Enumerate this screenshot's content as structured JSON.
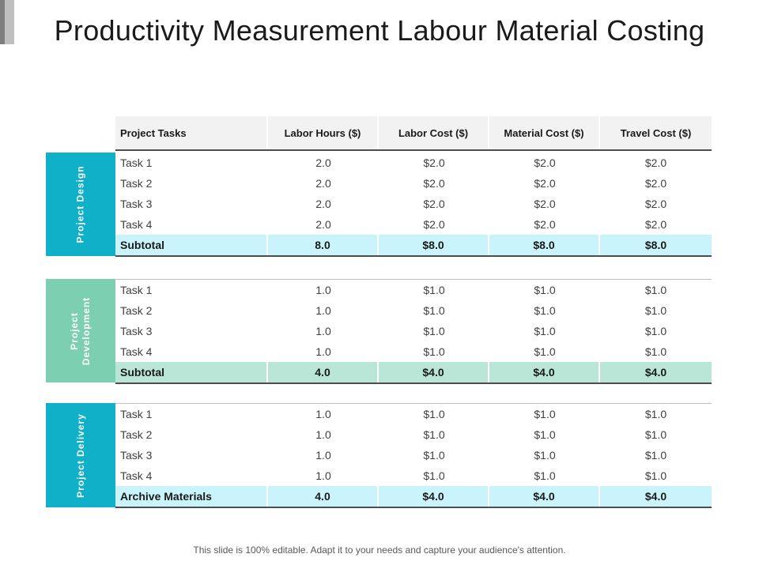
{
  "title": "Productivity Measurement Labour Material Costing",
  "headers": [
    "Project Tasks",
    "Labor Hours ($)",
    "Labor Cost ($)",
    "Material Cost ($)",
    "Travel Cost ($)"
  ],
  "colors": {
    "design": "#0fb0c8",
    "design_subtotal": "#c9f4fb",
    "development": "#7dcfb2",
    "development_subtotal": "#b9e6d6",
    "delivery": "#0fb0c8",
    "delivery_subtotal": "#c9f4fb"
  },
  "sections": [
    {
      "label": "Project Design",
      "rows": [
        [
          "Task 1",
          "2.0",
          "$2.0",
          "$2.0",
          "$2.0"
        ],
        [
          "Task 2",
          "2.0",
          "$2.0",
          "$2.0",
          "$2.0"
        ],
        [
          "Task 3",
          "2.0",
          "$2.0",
          "$2.0",
          "$2.0"
        ],
        [
          "Task 4",
          "2.0",
          "$2.0",
          "$2.0",
          "$2.0"
        ]
      ],
      "subtotal": [
        "Subtotal",
        "8.0",
        "$8.0",
        "$8.0",
        "$8.0"
      ]
    },
    {
      "label": "Project\nDevelopment",
      "rows": [
        [
          "Task 1",
          "1.0",
          "$1.0",
          "$1.0",
          "$1.0"
        ],
        [
          "Task 2",
          "1.0",
          "$1.0",
          "$1.0",
          "$1.0"
        ],
        [
          "Task 3",
          "1.0",
          "$1.0",
          "$1.0",
          "$1.0"
        ],
        [
          "Task 4",
          "1.0",
          "$1.0",
          "$1.0",
          "$1.0"
        ]
      ],
      "subtotal": [
        "Subtotal",
        "4.0",
        "$4.0",
        "$4.0",
        "$4.0"
      ]
    },
    {
      "label": "Project Delivery",
      "rows": [
        [
          "Task 1",
          "1.0",
          "$1.0",
          "$1.0",
          "$1.0"
        ],
        [
          "Task 2",
          "1.0",
          "$1.0",
          "$1.0",
          "$1.0"
        ],
        [
          "Task 3",
          "1.0",
          "$1.0",
          "$1.0",
          "$1.0"
        ],
        [
          "Task 4",
          "1.0",
          "$1.0",
          "$1.0",
          "$1.0"
        ]
      ],
      "subtotal": [
        "Archive Materials",
        "4.0",
        "$4.0",
        "$4.0",
        "$4.0"
      ]
    }
  ],
  "footer": "This slide is 100% editable. Adapt it to your needs and capture your audience's attention."
}
